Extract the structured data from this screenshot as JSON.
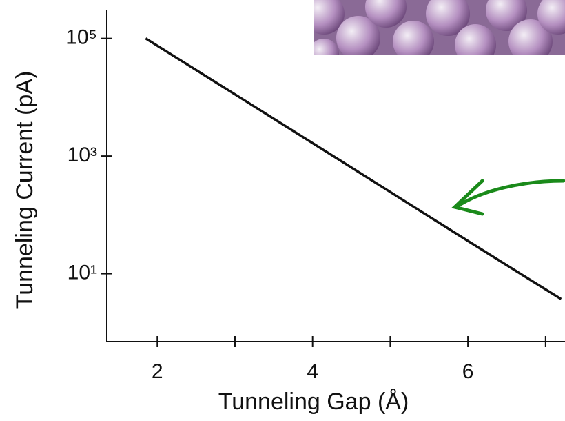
{
  "chart_data": {
    "type": "line",
    "x_label": "Tunneling Gap (Å)",
    "y_label": "Tunneling Current (pA)",
    "x": [
      1.85,
      3,
      4,
      5,
      6,
      7.2
    ],
    "series": [
      {
        "color": "#111111",
        "values": [
          100000,
          11200,
          1660,
          245,
          36,
          3.7
        ]
      }
    ],
    "xlim": [
      1.35,
      7.25
    ],
    "xticks": [
      2,
      4,
      6
    ],
    "x_minor_ticks": [
      3,
      5,
      7
    ],
    "ylim": [
      0.7,
      300000
    ],
    "log_y": true,
    "yticks": [
      {
        "value": 100000,
        "label": "10⁵"
      },
      {
        "value": 1000,
        "label": "10³"
      },
      {
        "value": 10,
        "label": "10¹"
      }
    ],
    "grid": false
  }
}
